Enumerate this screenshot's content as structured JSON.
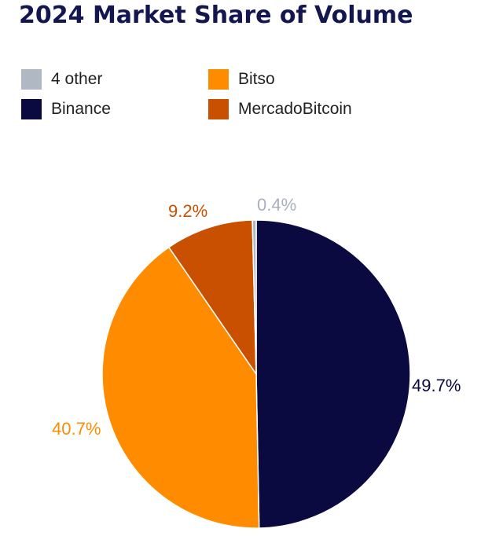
{
  "chart_data": {
    "type": "pie",
    "title": "2024 Market Share of Volume",
    "legend_position": "top-left",
    "slices": [
      {
        "name": "Binance",
        "value": 49.7,
        "label": "49.7%",
        "color": "#0a0a40"
      },
      {
        "name": "Bitso",
        "value": 40.7,
        "label": "40.7%",
        "color": "#ff8c00"
      },
      {
        "name": "MercadoBitcoin",
        "value": 9.2,
        "label": "9.2%",
        "color": "#c85000"
      },
      {
        "name": "4 other",
        "value": 0.4,
        "label": "0.4%",
        "color": "#b0b8c4"
      }
    ],
    "legend": [
      {
        "name": "4 other",
        "color": "#b0b8c4"
      },
      {
        "name": "Bitso",
        "color": "#ff8c00"
      },
      {
        "name": "Binance",
        "color": "#0a0a40"
      },
      {
        "name": "MercadoBitcoin",
        "color": "#c85000"
      }
    ]
  }
}
